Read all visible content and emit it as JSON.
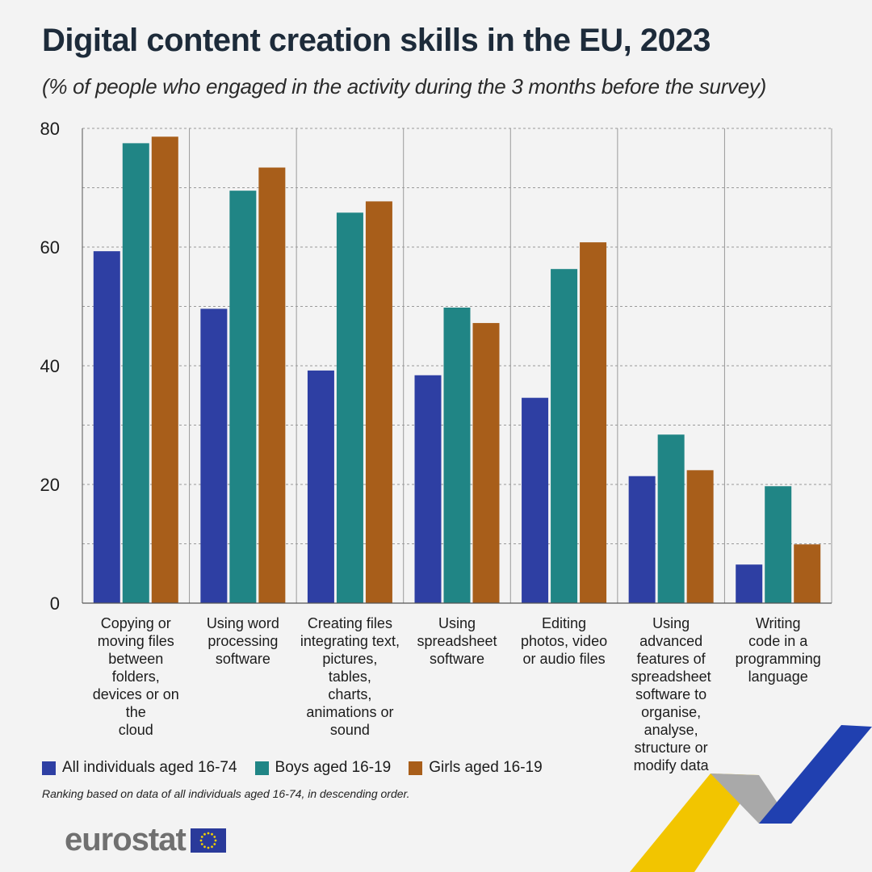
{
  "title": "Digital content creation skills in the EU, 2023",
  "subtitle": "(% of people who engaged in the activity during the 3 months before the survey)",
  "footnote": "Ranking based on data of all individuals aged 16-74, in descending order.",
  "logo": {
    "text": "eurostat"
  },
  "colors": {
    "all": "#2e3fa3",
    "boys": "#208585",
    "girls": "#a85e1a",
    "grid": "#9a9a9a"
  },
  "chart_data": {
    "type": "bar",
    "ylim": [
      0,
      80
    ],
    "yticks": [
      0,
      20,
      40,
      60,
      80
    ],
    "grid": true,
    "legend_position": "bottom-left",
    "categories": [
      [
        "Copying or",
        "moving files",
        "between folders,",
        "devices or on the",
        "cloud"
      ],
      [
        "Using word",
        "processing",
        "software"
      ],
      [
        "Creating files",
        "integrating text,",
        "pictures, tables,",
        "charts,",
        "animations or",
        "sound"
      ],
      [
        "Using",
        "spreadsheet",
        "software"
      ],
      [
        "Editing",
        "photos, video",
        "or audio files"
      ],
      [
        "Using advanced",
        "features of",
        "spreadsheet",
        "software to",
        "organise,",
        "analyse,",
        "structure or",
        "modify data"
      ],
      [
        "Writing",
        "code in a",
        "programming",
        "language"
      ]
    ],
    "series": [
      {
        "name": "All individuals aged 16-74",
        "color": "#2e3fa3",
        "values": [
          59.3,
          49.6,
          39.2,
          38.4,
          34.6,
          21.4,
          6.5
        ]
      },
      {
        "name": "Boys aged 16-19",
        "color": "#208585",
        "values": [
          77.5,
          69.5,
          65.8,
          49.8,
          56.3,
          28.4,
          19.7
        ]
      },
      {
        "name": "Girls aged 16-19",
        "color": "#a85e1a",
        "values": [
          78.6,
          73.4,
          67.7,
          47.2,
          60.8,
          22.4,
          9.9
        ]
      }
    ]
  }
}
